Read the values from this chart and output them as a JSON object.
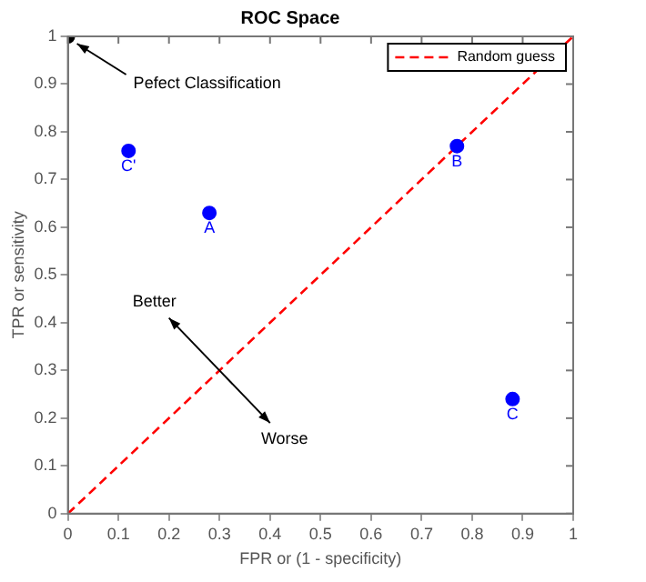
{
  "chart_data": {
    "type": "scatter",
    "title": "ROC Space",
    "xlabel": "FPR or (1 - specificity)",
    "ylabel": "TPR or sensitivity",
    "xlim": [
      0,
      1
    ],
    "ylim": [
      0,
      1
    ],
    "xticks": [
      0,
      0.1,
      0.2,
      0.3,
      0.4,
      0.5,
      0.6,
      0.7,
      0.8,
      0.9,
      1
    ],
    "yticks": [
      0,
      0.1,
      0.2,
      0.3,
      0.4,
      0.5,
      0.6,
      0.7,
      0.8,
      0.9,
      1
    ],
    "grid": false,
    "legend": "top right",
    "marker": "circle",
    "series": [
      {
        "type": "line",
        "name": "Random guess",
        "color": "#ff0000",
        "x": [
          0,
          1
        ],
        "values": [
          0,
          1
        ],
        "line_style": "dashed",
        "marker": "none"
      },
      {
        "color": "#000000",
        "x": [
          0
        ],
        "values": [
          1
        ]
      },
      {
        "name": "C'",
        "color": "#0000ff",
        "x": [
          0.12
        ],
        "values": [
          0.76
        ]
      },
      {
        "name": "A",
        "color": "#0000ff",
        "x": [
          0.28
        ],
        "values": [
          0.63
        ]
      },
      {
        "name": "B",
        "color": "#0000ff",
        "x": [
          0.77
        ],
        "values": [
          0.77
        ]
      },
      {
        "name": "C",
        "color": "#0000ff",
        "x": [
          0.88
        ],
        "values": [
          0.24
        ]
      }
    ],
    "annotations": [
      {
        "text": "Pefect Classification",
        "x": 0,
        "y": 1
      },
      "Better",
      "Worse"
    ]
  }
}
